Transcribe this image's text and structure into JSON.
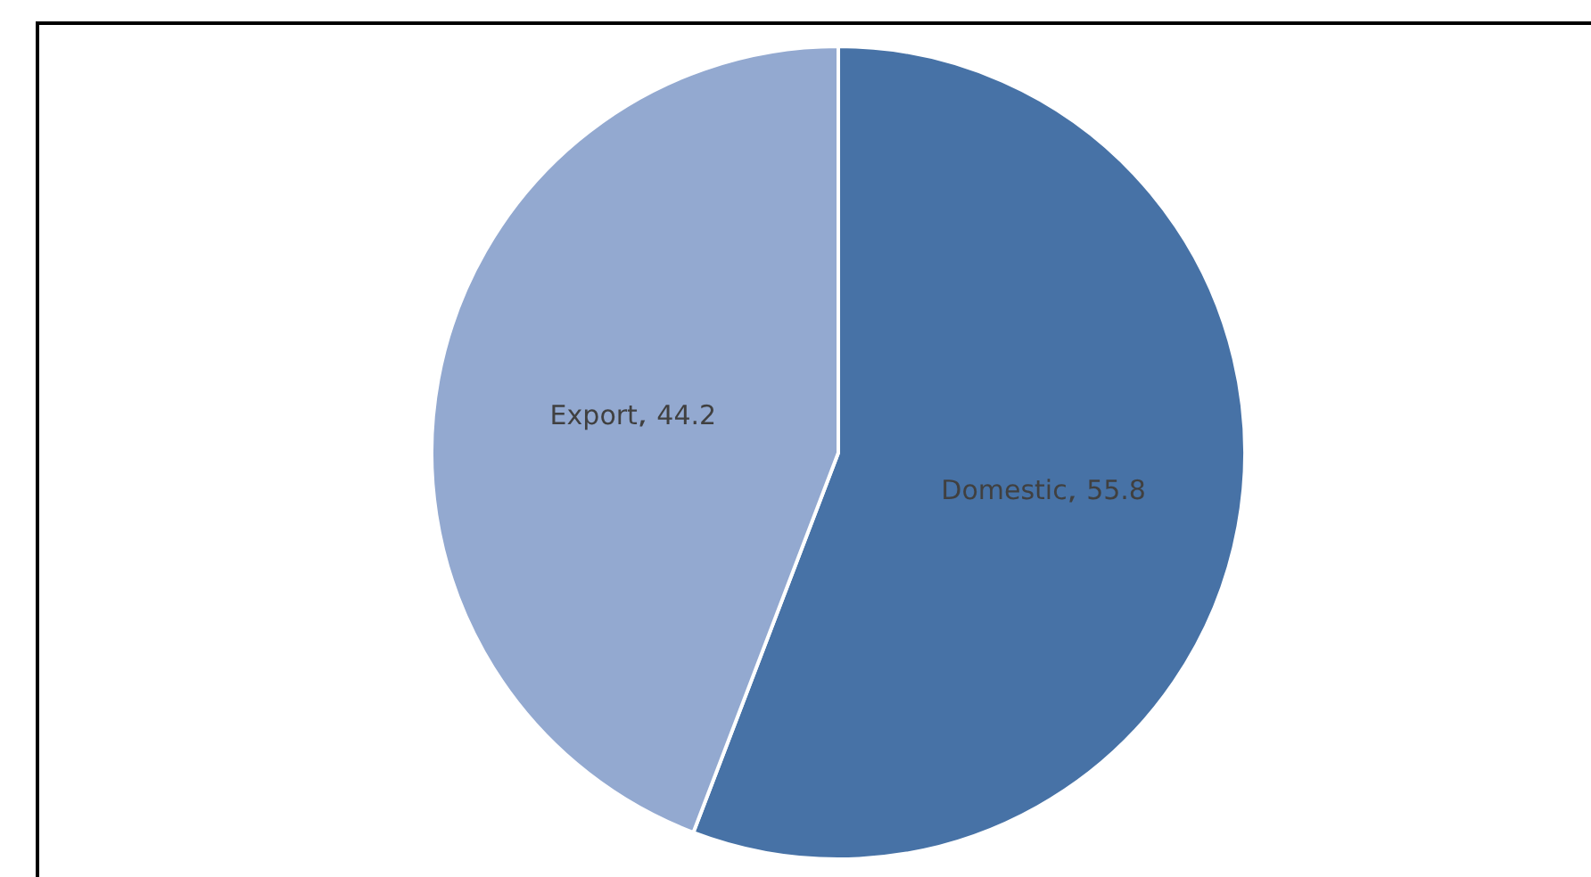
{
  "chart_data": {
    "type": "pie",
    "categories": [
      "Domestic",
      "Export"
    ],
    "values": [
      55.8,
      44.2
    ],
    "colors": [
      "#4772a6",
      "#93a9d0"
    ],
    "data_labels": true
  }
}
